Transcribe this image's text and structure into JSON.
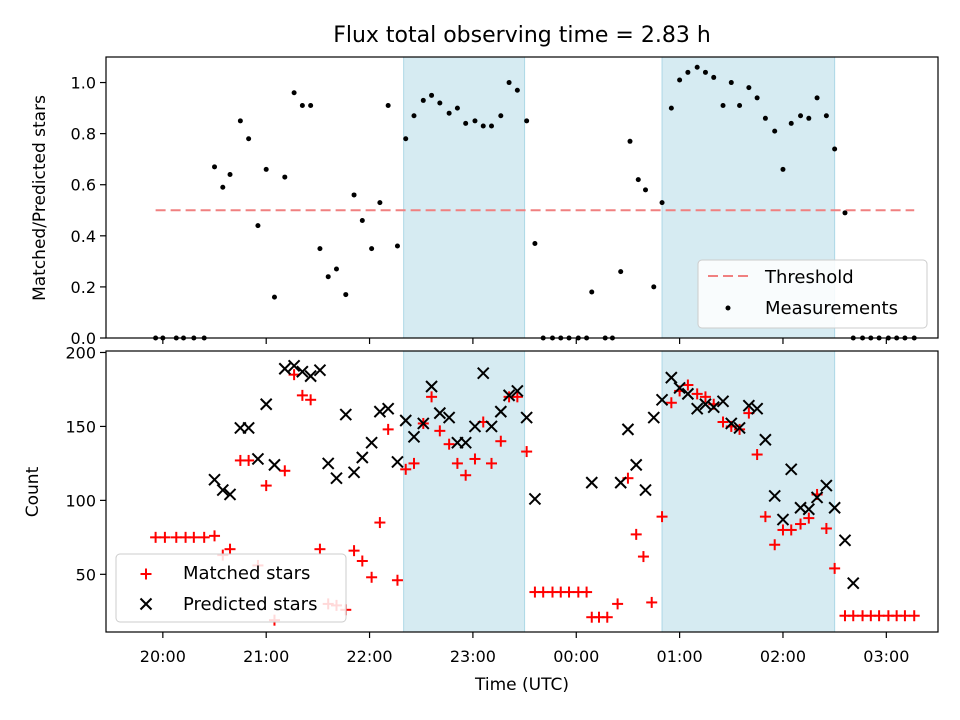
{
  "chart_data": {
    "type": "scatter",
    "title": "Flux total observing time = 2.83 h",
    "x_axis": {
      "label": "Time (UTC)",
      "tick_labels": [
        "20:00",
        "21:00",
        "22:00",
        "23:00",
        "00:00",
        "01:00",
        "02:00",
        "03:00"
      ],
      "range_hours": [
        19.45,
        27.5
      ]
    },
    "shaded_intervals_hours": [
      [
        22.33,
        23.5
      ],
      [
        24.83,
        26.5
      ]
    ],
    "shade_color": "#add8e6",
    "top_panel": {
      "ylabel": "Matched/Predicted stars",
      "ylim": [
        0,
        1.1
      ],
      "yticks": [
        "0.0",
        "0.2",
        "0.4",
        "0.6",
        "0.8",
        "1.0"
      ],
      "threshold": {
        "name": "Threshold",
        "value": 0.5,
        "x_range_hours": [
          19.93,
          27.27
        ],
        "color": "#f08080"
      },
      "measurements": {
        "name": "Measurements",
        "color": "#000000",
        "points": [
          [
            19.93,
            0
          ],
          [
            20.0,
            0
          ],
          [
            20.13,
            0
          ],
          [
            20.2,
            0
          ],
          [
            20.3,
            0
          ],
          [
            20.4,
            0
          ],
          [
            20.5,
            0.67
          ],
          [
            20.58,
            0.59
          ],
          [
            20.65,
            0.64
          ],
          [
            20.75,
            0.85
          ],
          [
            20.83,
            0.78
          ],
          [
            20.92,
            0.44
          ],
          [
            21.0,
            0.66
          ],
          [
            21.08,
            0.16
          ],
          [
            21.18,
            0.63
          ],
          [
            21.27,
            0.96
          ],
          [
            21.35,
            0.91
          ],
          [
            21.43,
            0.91
          ],
          [
            21.52,
            0.35
          ],
          [
            21.6,
            0.24
          ],
          [
            21.68,
            0.27
          ],
          [
            21.77,
            0.17
          ],
          [
            21.85,
            0.56
          ],
          [
            21.93,
            0.46
          ],
          [
            22.02,
            0.35
          ],
          [
            22.1,
            0.53
          ],
          [
            22.18,
            0.91
          ],
          [
            22.27,
            0.36
          ],
          [
            22.35,
            0.78
          ],
          [
            22.43,
            0.87
          ],
          [
            22.52,
            0.93
          ],
          [
            22.6,
            0.95
          ],
          [
            22.68,
            0.92
          ],
          [
            22.77,
            0.88
          ],
          [
            22.85,
            0.9
          ],
          [
            22.93,
            0.84
          ],
          [
            23.02,
            0.85
          ],
          [
            23.1,
            0.83
          ],
          [
            23.18,
            0.83
          ],
          [
            23.27,
            0.87
          ],
          [
            23.35,
            1.0
          ],
          [
            23.43,
            0.97
          ],
          [
            23.52,
            0.85
          ],
          [
            23.6,
            0.37
          ],
          [
            23.68,
            0
          ],
          [
            23.77,
            0
          ],
          [
            23.85,
            0
          ],
          [
            23.93,
            0
          ],
          [
            24.02,
            0
          ],
          [
            24.1,
            0
          ],
          [
            24.28,
            0
          ],
          [
            24.35,
            0
          ],
          [
            24.15,
            0.18
          ],
          [
            24.43,
            0.26
          ],
          [
            24.52,
            0.77
          ],
          [
            24.6,
            0.62
          ],
          [
            24.67,
            0.58
          ],
          [
            24.75,
            0.2
          ],
          [
            24.83,
            0.53
          ],
          [
            24.92,
            0.9
          ],
          [
            25.0,
            1.01
          ],
          [
            25.08,
            1.04
          ],
          [
            25.17,
            1.06
          ],
          [
            25.25,
            1.04
          ],
          [
            25.33,
            1.02
          ],
          [
            25.42,
            0.91
          ],
          [
            25.5,
            1.0
          ],
          [
            25.58,
            0.91
          ],
          [
            25.67,
            0.98
          ],
          [
            25.75,
            0.94
          ],
          [
            25.83,
            0.86
          ],
          [
            25.92,
            0.81
          ],
          [
            26.0,
            0.66
          ],
          [
            26.08,
            0.84
          ],
          [
            26.17,
            0.87
          ],
          [
            26.25,
            0.86
          ],
          [
            26.33,
            0.94
          ],
          [
            26.42,
            0.87
          ],
          [
            26.5,
            0.74
          ],
          [
            26.6,
            0.49
          ],
          [
            26.68,
            0
          ],
          [
            26.77,
            0
          ],
          [
            26.85,
            0
          ],
          [
            26.93,
            0
          ],
          [
            27.02,
            0
          ],
          [
            27.1,
            0
          ],
          [
            27.18,
            0
          ],
          [
            27.27,
            0
          ]
        ]
      }
    },
    "bottom_panel": {
      "ylabel": "Count",
      "ylim": [
        11,
        201
      ],
      "yticks": [
        "50",
        "100",
        "150",
        "200"
      ],
      "matched": {
        "name": "Matched stars",
        "color": "#ff0000",
        "marker": "+",
        "points": [
          [
            19.93,
            75
          ],
          [
            20.02,
            75
          ],
          [
            20.13,
            75
          ],
          [
            20.22,
            75
          ],
          [
            20.3,
            75
          ],
          [
            20.4,
            75
          ],
          [
            20.5,
            76
          ],
          [
            20.58,
            63
          ],
          [
            20.65,
            67
          ],
          [
            20.75,
            127
          ],
          [
            20.83,
            127
          ],
          [
            20.92,
            56
          ],
          [
            21.0,
            110
          ],
          [
            21.08,
            19
          ],
          [
            21.18,
            120
          ],
          [
            21.27,
            185
          ],
          [
            21.35,
            171
          ],
          [
            21.43,
            168
          ],
          [
            21.52,
            67
          ],
          [
            21.6,
            30
          ],
          [
            21.68,
            29
          ],
          [
            21.77,
            26
          ],
          [
            21.85,
            66
          ],
          [
            21.93,
            59
          ],
          [
            22.02,
            48
          ],
          [
            22.1,
            85
          ],
          [
            22.18,
            148
          ],
          [
            22.27,
            46
          ],
          [
            22.35,
            121
          ],
          [
            22.43,
            125
          ],
          [
            22.52,
            152
          ],
          [
            22.6,
            170
          ],
          [
            22.68,
            147
          ],
          [
            22.77,
            138
          ],
          [
            22.85,
            125
          ],
          [
            22.93,
            117
          ],
          [
            23.02,
            128
          ],
          [
            23.1,
            153
          ],
          [
            23.18,
            125
          ],
          [
            23.27,
            140
          ],
          [
            23.35,
            170
          ],
          [
            23.43,
            170
          ],
          [
            23.52,
            133
          ],
          [
            23.6,
            38
          ],
          [
            23.68,
            38
          ],
          [
            23.77,
            38
          ],
          [
            23.85,
            38
          ],
          [
            23.93,
            38
          ],
          [
            24.02,
            38
          ],
          [
            24.1,
            38
          ],
          [
            24.15,
            21
          ],
          [
            24.22,
            21
          ],
          [
            24.3,
            21
          ],
          [
            24.4,
            30
          ],
          [
            24.5,
            115
          ],
          [
            24.58,
            77
          ],
          [
            24.65,
            62
          ],
          [
            24.73,
            31
          ],
          [
            24.83,
            89
          ],
          [
            24.92,
            166
          ],
          [
            25.0,
            174
          ],
          [
            25.08,
            178
          ],
          [
            25.17,
            172
          ],
          [
            25.25,
            170
          ],
          [
            25.33,
            165
          ],
          [
            25.42,
            153
          ],
          [
            25.5,
            150
          ],
          [
            25.58,
            148
          ],
          [
            25.67,
            159
          ],
          [
            25.75,
            131
          ],
          [
            25.83,
            89
          ],
          [
            25.92,
            70
          ],
          [
            26.0,
            80
          ],
          [
            26.08,
            80
          ],
          [
            26.17,
            84
          ],
          [
            26.25,
            88
          ],
          [
            26.33,
            104
          ],
          [
            26.42,
            81
          ],
          [
            26.5,
            54
          ],
          [
            26.6,
            22
          ],
          [
            26.68,
            22
          ],
          [
            26.77,
            22
          ],
          [
            26.85,
            22
          ],
          [
            26.93,
            22
          ],
          [
            27.02,
            22
          ],
          [
            27.1,
            22
          ],
          [
            27.18,
            22
          ],
          [
            27.27,
            22
          ]
        ]
      },
      "predicted": {
        "name": "Predicted stars",
        "color": "#000000",
        "marker": "x",
        "points": [
          [
            20.5,
            114
          ],
          [
            20.58,
            107
          ],
          [
            20.65,
            104
          ],
          [
            20.75,
            149
          ],
          [
            20.83,
            149
          ],
          [
            20.92,
            128
          ],
          [
            21.0,
            165
          ],
          [
            21.08,
            124
          ],
          [
            21.18,
            189
          ],
          [
            21.27,
            191
          ],
          [
            21.35,
            187
          ],
          [
            21.43,
            184
          ],
          [
            21.52,
            188
          ],
          [
            21.6,
            125
          ],
          [
            21.68,
            115
          ],
          [
            21.77,
            158
          ],
          [
            21.85,
            119
          ],
          [
            21.93,
            129
          ],
          [
            22.02,
            139
          ],
          [
            22.1,
            160
          ],
          [
            22.18,
            162
          ],
          [
            22.27,
            126
          ],
          [
            22.35,
            154
          ],
          [
            22.43,
            143
          ],
          [
            22.52,
            152
          ],
          [
            22.6,
            177
          ],
          [
            22.68,
            159
          ],
          [
            22.77,
            156
          ],
          [
            22.85,
            139
          ],
          [
            22.93,
            139
          ],
          [
            23.02,
            150
          ],
          [
            23.1,
            186
          ],
          [
            23.18,
            150
          ],
          [
            23.27,
            160
          ],
          [
            23.35,
            171
          ],
          [
            23.43,
            174
          ],
          [
            23.52,
            156
          ],
          [
            23.6,
            101
          ],
          [
            24.15,
            112
          ],
          [
            24.43,
            112
          ],
          [
            24.5,
            148
          ],
          [
            24.58,
            124
          ],
          [
            24.67,
            107
          ],
          [
            24.75,
            156
          ],
          [
            24.83,
            168
          ],
          [
            24.92,
            183
          ],
          [
            25.0,
            176
          ],
          [
            25.08,
            172
          ],
          [
            25.17,
            162
          ],
          [
            25.25,
            165
          ],
          [
            25.33,
            163
          ],
          [
            25.42,
            167
          ],
          [
            25.5,
            152
          ],
          [
            25.58,
            149
          ],
          [
            25.67,
            164
          ],
          [
            25.75,
            162
          ],
          [
            25.83,
            141
          ],
          [
            25.92,
            103
          ],
          [
            26.0,
            87
          ],
          [
            26.08,
            121
          ],
          [
            26.17,
            95
          ],
          [
            26.25,
            94
          ],
          [
            26.33,
            102
          ],
          [
            26.42,
            110
          ],
          [
            26.5,
            95
          ],
          [
            26.6,
            73
          ],
          [
            26.68,
            44
          ]
        ]
      }
    },
    "legend_top": [
      "Threshold",
      "Measurements"
    ],
    "legend_bottom": [
      "Matched stars",
      "Predicted stars"
    ]
  }
}
